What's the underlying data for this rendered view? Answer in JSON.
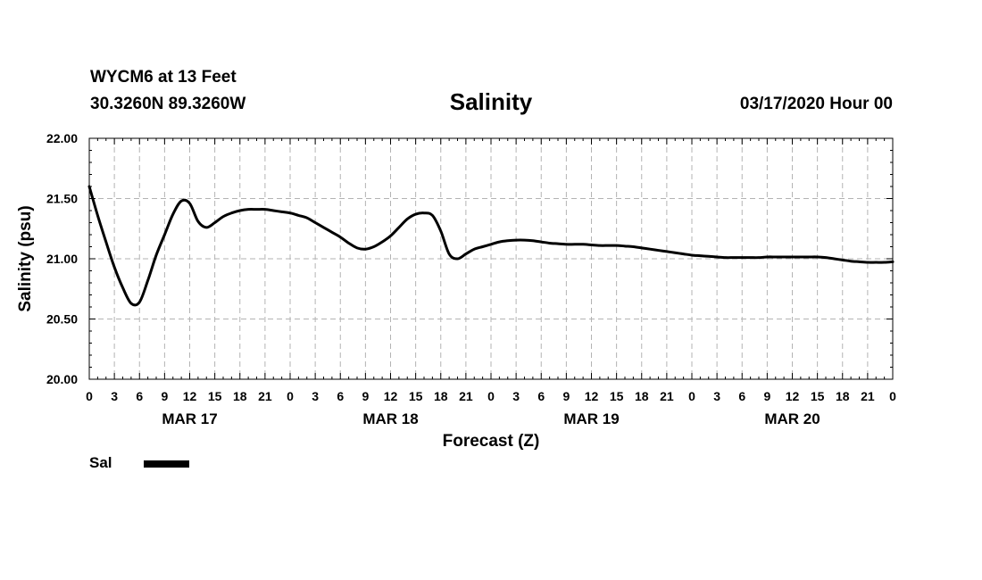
{
  "header": {
    "station": "WYCM6 at 13 Feet",
    "coords": "30.3260N 89.3260W",
    "datetime": "03/17/2020 Hour 00"
  },
  "chart_data": {
    "type": "line",
    "title": "Salinity",
    "xlabel": "Forecast (Z)",
    "ylabel": "Salinity (psu)",
    "ylim": [
      20.0,
      22.0
    ],
    "xlim": [
      0,
      96
    ],
    "y_ticks": [
      "20.00",
      "20.50",
      "21.00",
      "21.50",
      "22.00"
    ],
    "x_tick_labels": [
      "0",
      "3",
      "6",
      "9",
      "12",
      "15",
      "18",
      "21",
      "0",
      "3",
      "6",
      "9",
      "12",
      "15",
      "18",
      "21",
      "0",
      "3",
      "6",
      "9",
      "12",
      "15",
      "18",
      "21",
      "0",
      "3",
      "6",
      "9",
      "12",
      "15",
      "18",
      "21",
      "0"
    ],
    "date_labels": [
      {
        "label": "MAR 17",
        "hour": 12
      },
      {
        "label": "MAR 18",
        "hour": 36
      },
      {
        "label": "MAR 19",
        "hour": 60
      },
      {
        "label": "MAR 20",
        "hour": 84
      }
    ],
    "grid": true,
    "line_color": "#000000",
    "legend": {
      "placement": "bottom-left"
    },
    "series": [
      {
        "name": "Sal",
        "x": [
          0,
          1,
          2,
          3,
          4,
          5,
          6,
          7,
          8,
          9,
          10,
          11,
          12,
          13,
          14,
          15,
          16,
          17,
          18,
          19,
          20,
          21,
          22,
          23,
          24,
          25,
          26,
          27,
          28,
          29,
          30,
          31,
          32,
          33,
          34,
          35,
          36,
          37,
          38,
          39,
          40,
          41,
          42,
          43,
          44,
          45,
          46,
          47,
          48,
          49,
          50,
          51,
          52,
          53,
          54,
          55,
          56,
          57,
          58,
          59,
          60,
          61,
          62,
          63,
          64,
          65,
          66,
          67,
          68,
          69,
          70,
          71,
          72,
          73,
          74,
          75,
          76,
          77,
          78,
          79,
          80,
          81,
          82,
          83,
          84,
          85,
          86,
          87,
          88,
          89,
          90,
          91,
          92,
          93,
          94,
          95,
          96
        ],
        "values": [
          21.6,
          21.36,
          21.14,
          20.93,
          20.76,
          20.63,
          20.64,
          20.82,
          21.03,
          21.2,
          21.37,
          21.48,
          21.46,
          21.31,
          21.26,
          21.3,
          21.35,
          21.38,
          21.4,
          21.41,
          21.41,
          21.41,
          21.4,
          21.39,
          21.38,
          21.36,
          21.34,
          21.3,
          21.26,
          21.22,
          21.18,
          21.13,
          21.09,
          21.08,
          21.1,
          21.14,
          21.19,
          21.26,
          21.33,
          21.37,
          21.38,
          21.36,
          21.23,
          21.04,
          21.0,
          21.04,
          21.08,
          21.1,
          21.12,
          21.14,
          21.15,
          21.155,
          21.155,
          21.15,
          21.14,
          21.13,
          21.125,
          21.12,
          21.12,
          21.12,
          21.115,
          21.11,
          21.11,
          21.11,
          21.105,
          21.1,
          21.09,
          21.08,
          21.07,
          21.06,
          21.05,
          21.04,
          21.03,
          21.025,
          21.02,
          21.015,
          21.01,
          21.01,
          21.01,
          21.01,
          21.01,
          21.015,
          21.015,
          21.015,
          21.015,
          21.015,
          21.015,
          21.015,
          21.01,
          21.0,
          20.99,
          20.98,
          20.975,
          20.97,
          20.97,
          20.97,
          20.975
        ]
      }
    ]
  }
}
